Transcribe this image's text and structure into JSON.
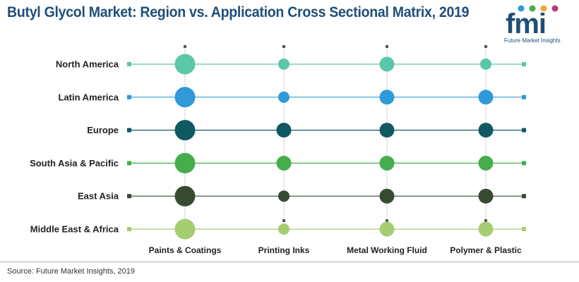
{
  "title": "Butyl Glycol Market: Region vs. Application Cross Sectional Matrix, 2019",
  "logo": {
    "letters": "fmi",
    "tagline": "Future Market Insights"
  },
  "source": "Source: Future Market Insights, 2019",
  "chart_data": {
    "type": "scatter",
    "categories": [
      "Paints & Coatings",
      "Printing Inks",
      "Metal Working Fluid",
      "Polymer & Plastic"
    ],
    "series": [
      {
        "name": "North America",
        "color": "#5cc6a8",
        "values": [
          3,
          1,
          2,
          1
        ]
      },
      {
        "name": "Latin America",
        "color": "#2e9ad8",
        "values": [
          3,
          1,
          2,
          2
        ]
      },
      {
        "name": "Europe",
        "color": "#0f5a62",
        "values": [
          3,
          2,
          2,
          2
        ]
      },
      {
        "name": "South Asia & Pacific",
        "color": "#45ad4b",
        "values": [
          3,
          2,
          2,
          2
        ]
      },
      {
        "name": "East Asia",
        "color": "#374b33",
        "values": [
          3,
          1,
          2,
          2
        ]
      },
      {
        "name": "Middle East & Africa",
        "color": "#a5cd72",
        "values": [
          3,
          1,
          2,
          2
        ]
      }
    ]
  }
}
